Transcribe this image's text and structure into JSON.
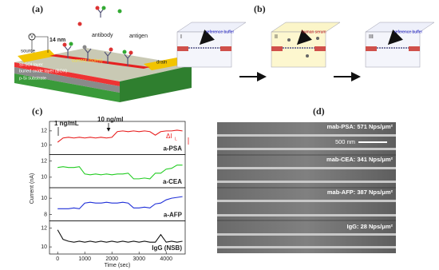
{
  "panel_a": {
    "label": "(a)",
    "voltage": "V",
    "gap": "14 nm",
    "antibody": "antibody",
    "antigen": "antigen",
    "source": "source",
    "drain": "drain",
    "current": "current (holes)",
    "soi": "Si-SOI layer",
    "box": "buried oxide layer (BOX)",
    "substrate": "p-Si substrate"
  },
  "panel_b": {
    "label": "(b)",
    "steps": [
      {
        "numeral": "I",
        "buffer": "reference buffer"
      },
      {
        "numeral": "II",
        "buffer": "human serum"
      },
      {
        "numeral": "III",
        "buffer": "reference buffer"
      }
    ]
  },
  "chart_data": {
    "type": "line",
    "title": "(c)",
    "x_label": "Time (sec)",
    "y_label": "Current (nA)",
    "annotations": [
      "1 ng/mL",
      "10 ng/ml"
    ],
    "delta_label": "ΔI",
    "delta_sub": "L",
    "xlim": [
      -300,
      4700
    ],
    "xticks": [
      0,
      1000,
      2000,
      3000,
      4000
    ],
    "x": [
      0,
      200,
      400,
      600,
      800,
      1000,
      1200,
      1400,
      1600,
      1800,
      2000,
      2200,
      2400,
      2600,
      2800,
      3000,
      3200,
      3400,
      3600,
      3800,
      4000,
      4200,
      4400,
      4600
    ],
    "series": [
      {
        "name": "a-PSA",
        "color": "#e81c1c",
        "ylim": [
          9,
          13
        ],
        "yticks": [
          10,
          12
        ],
        "values": [
          10.4,
          11.0,
          11.1,
          11.0,
          11.1,
          11.0,
          11.1,
          11.0,
          11.1,
          11.0,
          11.1,
          11.9,
          12.0,
          11.9,
          12.0,
          11.9,
          12.0,
          11.9,
          11.4,
          11.9,
          12.0,
          12.0,
          12.1,
          12.0
        ]
      },
      {
        "name": "a-CEA",
        "color": "#22cc22",
        "ylim": [
          9,
          12.5
        ],
        "yticks": [
          10,
          12
        ],
        "values": [
          11.2,
          11.3,
          11.2,
          11.2,
          11.3,
          10.4,
          10.3,
          10.4,
          10.3,
          10.4,
          10.3,
          10.4,
          10.4,
          10.5,
          9.8,
          9.8,
          9.9,
          9.8,
          10.5,
          10.5,
          11.0,
          11.1,
          11.5,
          11.5
        ]
      },
      {
        "name": "a-AFP",
        "color": "#1f2fd8",
        "ylim": [
          7.5,
          11
        ],
        "yticks": [
          8,
          10
        ],
        "values": [
          8.7,
          8.7,
          8.7,
          8.8,
          8.7,
          9.4,
          9.5,
          9.4,
          9.4,
          9.5,
          9.4,
          9.4,
          9.5,
          9.4,
          8.8,
          8.8,
          8.9,
          8.8,
          9.3,
          9.4,
          9.8,
          10.0,
          10.1,
          10.2
        ]
      },
      {
        "name": "IgG (NSB)",
        "color": "#111111",
        "ylim": [
          9.5,
          12.5
        ],
        "yticks": [
          10,
          12
        ],
        "values": [
          11.8,
          10.8,
          10.6,
          10.5,
          10.6,
          10.5,
          10.6,
          10.5,
          10.6,
          10.5,
          10.6,
          10.5,
          10.6,
          10.5,
          10.6,
          10.5,
          10.6,
          10.5,
          10.5,
          11.3,
          10.5,
          10.6,
          10.5,
          10.6
        ]
      }
    ]
  },
  "panel_d": {
    "label": "(d)",
    "scale": "500 nm",
    "images": [
      "mab-PSA: 571 Nps/μm²",
      "mab-CEA: 341 Nps/μm²",
      "mab-AFP: 387 Nps/μm²",
      "IgG: 28 Nps/μm²"
    ]
  }
}
